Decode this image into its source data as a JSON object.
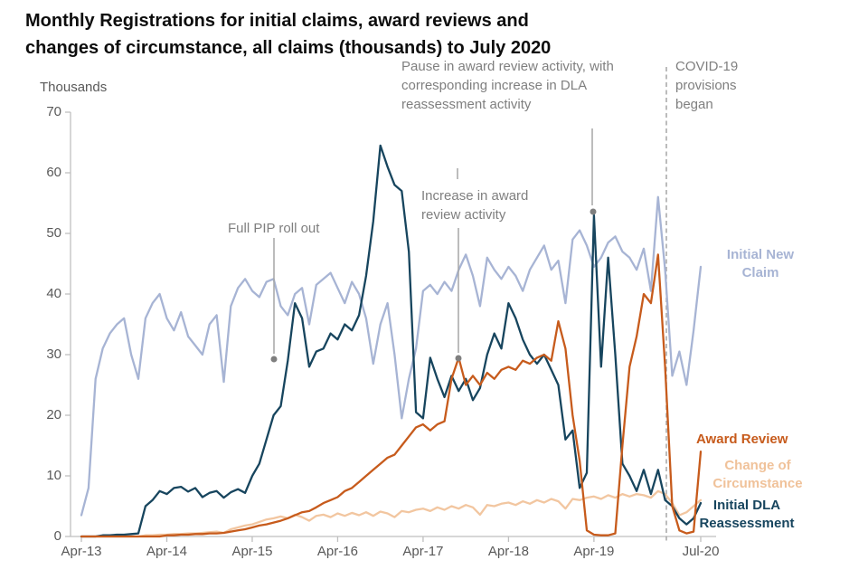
{
  "title": {
    "line1": "Monthly Registrations for initial claims, award reviews and",
    "line2": "changes of circumstance, all claims (thousands) to July 2020"
  },
  "chart_data": {
    "type": "line",
    "title": "Monthly Registrations for initial claims, award reviews and changes of circumstance, all claims (thousands) to July 2020",
    "ylabel": "Thousands",
    "xlabel": "",
    "ylim": [
      0,
      70
    ],
    "grid": false,
    "legend_position": "right-inline-labels",
    "x_unit": "month",
    "x_range": [
      "Apr-2013",
      "Jul-2020"
    ],
    "y_ticks": [
      0,
      10,
      20,
      30,
      40,
      50,
      60,
      70
    ],
    "x_tick_labels": [
      "Apr-13",
      "Apr-14",
      "Apr-15",
      "Apr-16",
      "Apr-17",
      "Apr-18",
      "Apr-19",
      "Jul-20"
    ],
    "x_tick_indices": [
      0,
      12,
      24,
      36,
      48,
      60,
      72,
      87
    ],
    "series": [
      {
        "id": "initial-new-claim",
        "name": "Initial New Claim",
        "color": "#a7b4d4",
        "values": [
          3.5,
          8,
          26,
          31,
          33.5,
          35,
          36,
          30,
          26,
          36,
          38.5,
          40,
          36,
          34,
          37,
          33,
          31.5,
          30,
          35,
          36.5,
          25.5,
          38,
          41,
          42.5,
          40.5,
          39.5,
          42,
          42.5,
          38,
          36.5,
          40,
          41,
          35,
          41.5,
          42.5,
          43.5,
          41,
          38.5,
          42,
          40,
          36,
          28.5,
          35,
          38.5,
          30,
          19.5,
          26,
          31,
          40.5,
          41.5,
          40,
          42,
          40.5,
          44,
          46.5,
          43,
          38,
          46,
          44,
          42.5,
          44.5,
          43,
          40.5,
          44,
          46,
          48,
          44,
          45.5,
          38.5,
          49,
          50.5,
          48,
          44.5,
          46,
          48.5,
          49.5,
          47,
          46,
          44,
          47.5,
          40.5,
          56,
          44,
          26.5,
          30.5,
          25,
          34,
          44.5
        ]
      },
      {
        "id": "change-of-circumstance",
        "name": "Change of Circumstance",
        "color": "#f2c6a0",
        "values": [
          0,
          0,
          0,
          0,
          0,
          0,
          0,
          0,
          0,
          0.2,
          0.2,
          0.3,
          0.3,
          0.4,
          0.4,
          0.5,
          0.5,
          0.6,
          0.7,
          0.8,
          0.6,
          1.2,
          1.5,
          1.8,
          2,
          2.4,
          2.8,
          3,
          3.3,
          3,
          3.6,
          3.2,
          2.6,
          3.4,
          3.6,
          3.2,
          3.8,
          3.4,
          3.9,
          3.5,
          4,
          3.4,
          4.1,
          3.8,
          3.2,
          4.2,
          4,
          4.4,
          4.6,
          4.2,
          4.8,
          4.4,
          5,
          4.6,
          5.2,
          4.8,
          3.6,
          5.2,
          5,
          5.4,
          5.6,
          5.2,
          5.8,
          5.4,
          6,
          5.6,
          6.2,
          5.8,
          4.6,
          6.2,
          6,
          6.4,
          6.6,
          6.2,
          6.8,
          6.4,
          7,
          6.6,
          7,
          6.8,
          6.4,
          7.5,
          7,
          5.5,
          3.5,
          4,
          5,
          6
        ]
      },
      {
        "id": "initial-dla-reassessment",
        "name": "Initial DLA Reassessment",
        "color": "#17455e",
        "values": [
          0,
          0,
          0,
          0.2,
          0.2,
          0.3,
          0.3,
          0.4,
          0.5,
          5,
          6,
          7.5,
          7,
          8,
          8.2,
          7.4,
          8,
          6.5,
          7.2,
          7.5,
          6.4,
          7.3,
          7.8,
          7.2,
          10,
          12,
          16,
          20,
          21.5,
          29,
          38.5,
          36,
          28,
          30.5,
          31,
          33.5,
          32.5,
          35,
          34,
          36.5,
          43,
          52,
          64.5,
          61,
          58,
          57,
          47,
          20.5,
          19.5,
          29.5,
          26,
          23,
          26.5,
          24,
          26,
          22.5,
          24.5,
          30,
          33.5,
          31,
          38.5,
          36,
          32.5,
          30,
          28.5,
          30,
          27.5,
          25,
          16,
          17.5,
          8,
          10.5,
          53,
          28,
          46,
          30,
          12,
          10,
          7.5,
          11,
          7,
          11,
          6,
          5,
          3,
          2,
          3,
          5.5
        ]
      },
      {
        "id": "award-review",
        "name": "Award Review",
        "color": "#c75b1c",
        "values": [
          0,
          0,
          0,
          0,
          0,
          0,
          0,
          0,
          0,
          0,
          0,
          0,
          0.2,
          0.2,
          0.3,
          0.3,
          0.4,
          0.4,
          0.5,
          0.5,
          0.6,
          0.8,
          1,
          1.2,
          1.5,
          1.8,
          2,
          2.3,
          2.6,
          3,
          3.5,
          4,
          4.2,
          4.8,
          5.5,
          6,
          6.5,
          7.5,
          8,
          9,
          10,
          11,
          12,
          13,
          13.5,
          15,
          16.5,
          18,
          18.5,
          17.5,
          18.5,
          19,
          26,
          29.5,
          25,
          26.5,
          25,
          27,
          26,
          27.5,
          28,
          27.5,
          29,
          28.5,
          29.5,
          30,
          29,
          35.5,
          31,
          20,
          12.5,
          1,
          0.3,
          0.2,
          0.2,
          0.5,
          15,
          28,
          33,
          40,
          38.5,
          46.5,
          28,
          5,
          1,
          0.5,
          0.8,
          14
        ]
      }
    ],
    "annotations": [
      {
        "id": "full-pip-roll-out",
        "text": "Full PIP roll out"
      },
      {
        "id": "increase-award-review",
        "text": "Increase in award review activity"
      },
      {
        "id": "pause-award-review",
        "text": "Pause in award review activity, with corresponding increase in DLA reassessment activity"
      },
      {
        "id": "covid-provisions",
        "text": "COVID-19 provisions began"
      }
    ],
    "series_labels": [
      {
        "text": "Initial New Claim",
        "color": "#a7b4d4"
      },
      {
        "text": "Award Review",
        "color": "#c75b1c"
      },
      {
        "text": "Change of Circumstance",
        "color": "#f0c29a"
      },
      {
        "text": "Initial DLA Reassessment",
        "color": "#17455e"
      }
    ]
  }
}
